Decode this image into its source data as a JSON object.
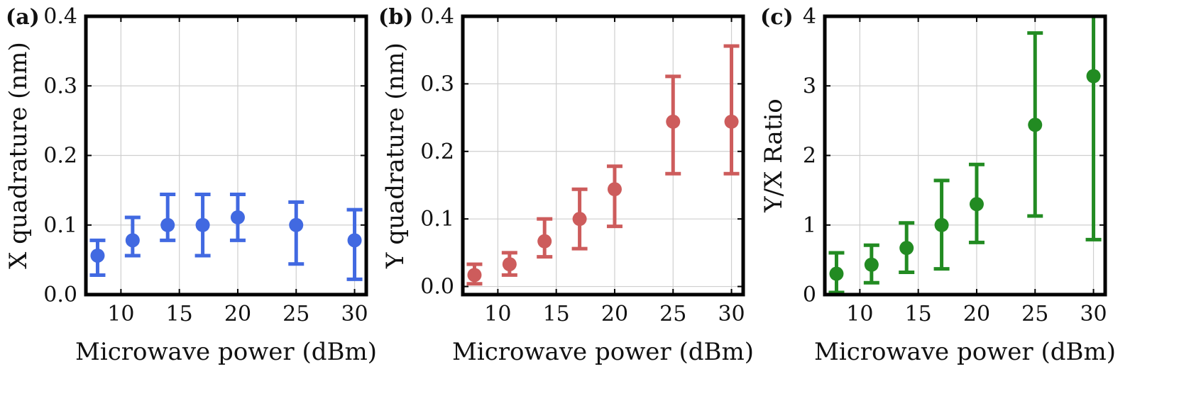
{
  "chart_data": [
    {
      "type": "scatter",
      "panel": "(a)",
      "xlabel": "Microwave power (dBm)",
      "ylabel": "X quadrature (nm)",
      "xlim": [
        7,
        31
      ],
      "ylim": [
        0,
        0.4
      ],
      "xticks": [
        10,
        15,
        20,
        25,
        30
      ],
      "xtick_labels": [
        "10",
        "15",
        "20",
        "25",
        "30"
      ],
      "yticks": [
        0.0,
        0.1,
        0.2,
        0.3,
        0.4
      ],
      "ytick_labels": [
        "0.0",
        "0.1",
        "0.2",
        "0.3",
        "0.4"
      ],
      "grid": true,
      "color": "#4169E1",
      "x": [
        8,
        11,
        14,
        17,
        20,
        25,
        30
      ],
      "y": [
        0.056,
        0.078,
        0.1,
        0.1,
        0.111,
        0.1,
        0.078
      ],
      "yerr_low": [
        0.028,
        0.056,
        0.078,
        0.056,
        0.078,
        0.044,
        0.022
      ],
      "yerr_high": [
        0.078,
        0.111,
        0.144,
        0.144,
        0.144,
        0.133,
        0.122
      ]
    },
    {
      "type": "scatter",
      "panel": "(b)",
      "xlabel": "Microwave power (dBm)",
      "ylabel": "Y quadrature (nm)",
      "xlim": [
        7,
        31
      ],
      "ylim": [
        -0.012,
        0.4
      ],
      "xticks": [
        10,
        15,
        20,
        25,
        30
      ],
      "xtick_labels": [
        "10",
        "15",
        "20",
        "25",
        "30"
      ],
      "yticks": [
        0.0,
        0.1,
        0.2,
        0.3,
        0.4
      ],
      "ytick_labels": [
        "0.0",
        "0.1",
        "0.2",
        "0.3",
        "0.4"
      ],
      "grid": true,
      "color": "#CD5C5C",
      "x": [
        8,
        11,
        14,
        17,
        20,
        25,
        30
      ],
      "y": [
        0.017,
        0.033,
        0.067,
        0.1,
        0.144,
        0.244,
        0.244
      ],
      "yerr_low": [
        0.004,
        0.017,
        0.044,
        0.056,
        0.089,
        0.167,
        0.167
      ],
      "yerr_high": [
        0.033,
        0.05,
        0.1,
        0.144,
        0.178,
        0.311,
        0.356
      ]
    },
    {
      "type": "scatter",
      "panel": "(c)",
      "xlabel": "Microwave power (dBm)",
      "ylabel": "Y/X Ratio",
      "xlim": [
        7,
        31
      ],
      "ylim": [
        0,
        4
      ],
      "xticks": [
        10,
        15,
        20,
        25,
        30
      ],
      "xtick_labels": [
        "10",
        "15",
        "20",
        "25",
        "30"
      ],
      "yticks": [
        0,
        1,
        2,
        3,
        4
      ],
      "ytick_labels": [
        "0",
        "1",
        "2",
        "3",
        "4"
      ],
      "grid": true,
      "color": "#228B22",
      "x": [
        8,
        11,
        14,
        17,
        20,
        25,
        30
      ],
      "y": [
        0.3,
        0.43,
        0.67,
        1.0,
        1.3,
        2.44,
        3.14
      ],
      "yerr_low": [
        0.03,
        0.17,
        0.32,
        0.37,
        0.75,
        1.13,
        0.79
      ],
      "yerr_high": [
        0.6,
        0.71,
        1.03,
        1.64,
        1.87,
        3.76,
        4.05
      ]
    }
  ]
}
